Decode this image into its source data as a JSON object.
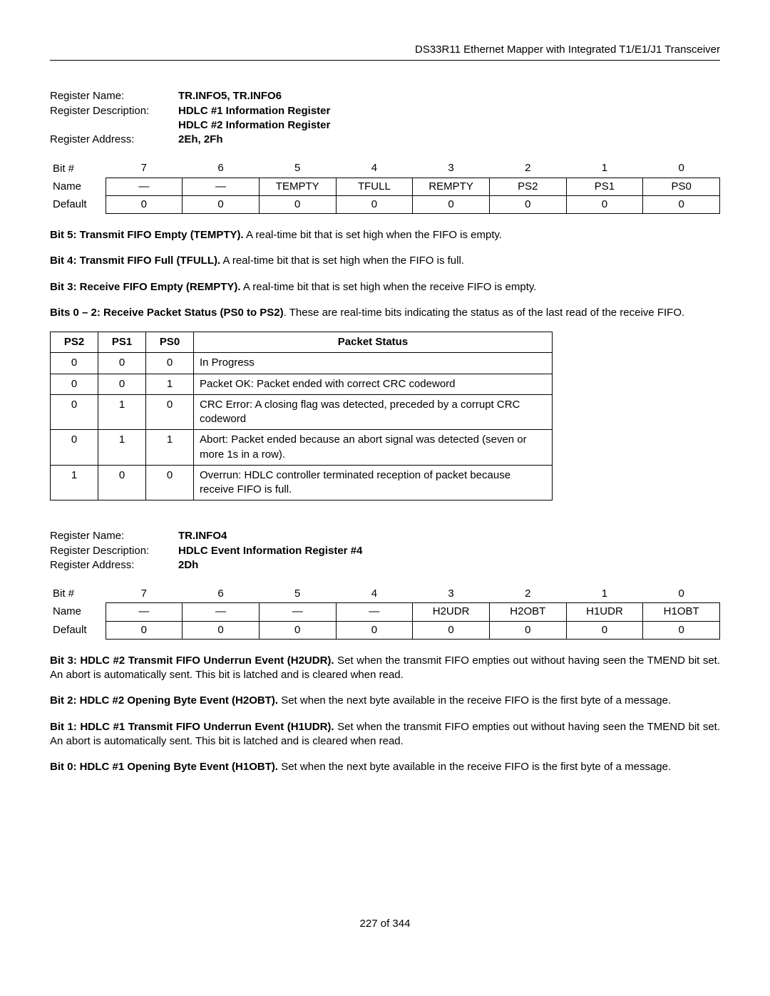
{
  "header": "DS33R11 Ethernet Mapper with Integrated T1/E1/J1 Transceiver",
  "reg1": {
    "name_label": "Register Name:",
    "name_value": "TR.INFO5, TR.INFO6",
    "desc_label": "Register Description:",
    "desc_value1": "HDLC #1 Information Register",
    "desc_value2": "HDLC #2 Information Register",
    "addr_label": "Register Address:",
    "addr_value": "2Eh, 2Fh",
    "bit_row": "Bit #",
    "name_row": "Name",
    "default_row": "Default",
    "bits": [
      "7",
      "6",
      "5",
      "4",
      "3",
      "2",
      "1",
      "0"
    ],
    "names": [
      "—",
      "—",
      "TEMPTY",
      "TFULL",
      "REMPTY",
      "PS2",
      "PS1",
      "PS0"
    ],
    "defaults": [
      "0",
      "0",
      "0",
      "0",
      "0",
      "0",
      "0",
      "0"
    ]
  },
  "bit5": {
    "bold": "Bit 5: Transmit FIFO Empty (TEMPTY).",
    "text": " A real-time bit that is set high when the FIFO is empty."
  },
  "bit4": {
    "bold": "Bit 4: Transmit FIFO Full (TFULL).",
    "text": " A real-time bit that is set high when the FIFO is full."
  },
  "bit3": {
    "bold": "Bit 3: Receive FIFO Empty (REMPTY).",
    "text": " A real-time bit that is set high when the receive FIFO is empty."
  },
  "bits02": {
    "bold": "Bits 0 – 2: Receive Packet Status (PS0 to PS2)",
    "text": ". These are real-time bits indicating the status as of the last read of the receive FIFO."
  },
  "status": {
    "headers": [
      "PS2",
      "PS1",
      "PS0",
      "Packet Status"
    ],
    "rows": [
      {
        "ps2": "0",
        "ps1": "0",
        "ps0": "0",
        "bold": "In Progress",
        "text": ""
      },
      {
        "ps2": "0",
        "ps1": "0",
        "ps0": "1",
        "bold": "Packet OK:",
        "text": " Packet ended with correct CRC codeword"
      },
      {
        "ps2": "0",
        "ps1": "1",
        "ps0": "0",
        "bold": "CRC Error:",
        "text": " A closing flag was detected, preceded by a corrupt CRC codeword"
      },
      {
        "ps2": "0",
        "ps1": "1",
        "ps0": "1",
        "bold": "Abort:",
        "text": " Packet ended because an abort signal was detected (seven or more 1s in a row)."
      },
      {
        "ps2": "1",
        "ps1": "0",
        "ps0": "0",
        "bold": "Overrun:",
        "text": " HDLC controller terminated reception of packet because receive FIFO is full."
      }
    ]
  },
  "reg2": {
    "name_label": "Register Name:",
    "name_value": "TR.INFO4",
    "desc_label": "Register Description:",
    "desc_value": "HDLC Event Information Register #4",
    "addr_label": "Register Address:",
    "addr_value": "2Dh",
    "bit_row": "Bit #",
    "name_row": "Name",
    "default_row": "Default",
    "bits": [
      "7",
      "6",
      "5",
      "4",
      "3",
      "2",
      "1",
      "0"
    ],
    "names": [
      "—",
      "—",
      "—",
      "—",
      "H2UDR",
      "H2OBT",
      "H1UDR",
      "H1OBT"
    ],
    "defaults": [
      "0",
      "0",
      "0",
      "0",
      "0",
      "0",
      "0",
      "0"
    ]
  },
  "r2bit3": {
    "bold": "Bit 3: HDLC #2 Transmit FIFO Underrun Event (H2UDR).",
    "text": " Set when the transmit FIFO empties out without having seen the TMEND bit set. An abort is automatically sent. This bit is latched and is cleared when read."
  },
  "r2bit2": {
    "bold": "Bit 2: HDLC #2 Opening Byte Event (H2OBT).",
    "text": " Set when the next byte available in the receive FIFO is the first byte of a message."
  },
  "r2bit1": {
    "bold": "Bit 1: HDLC #1 Transmit FIFO Underrun Event (H1UDR).",
    "text": " Set when the transmit FIFO empties out without having seen the TMEND bit set. An abort is automatically sent. This bit is latched and is cleared when read."
  },
  "r2bit0": {
    "bold": "Bit 0: HDLC #1 Opening Byte Event (H1OBT).",
    "text": " Set when the next byte available in the receive FIFO is the first byte of a message."
  },
  "footer": "227 of 344"
}
